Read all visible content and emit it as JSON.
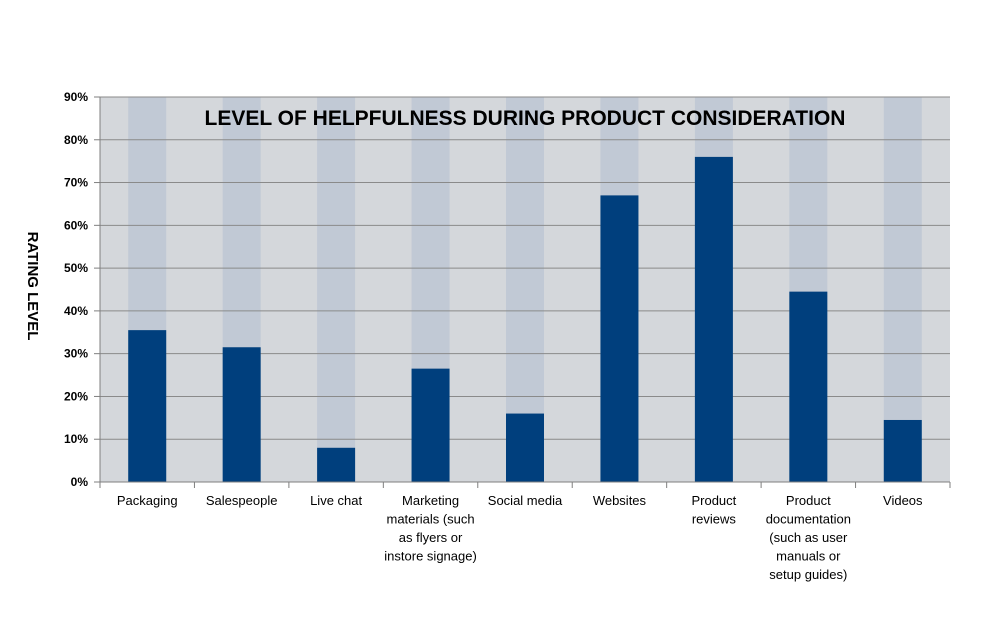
{
  "chart_data": {
    "type": "bar",
    "title": "LEVEL OF HELPFULNESS DURING PRODUCT CONSIDERATION",
    "xlabel": "",
    "ylabel": "RATING LEVEL",
    "ylim": [
      0,
      90
    ],
    "ytick_step": 10,
    "ytick_suffix": "%",
    "categories": [
      [
        "Packaging"
      ],
      [
        "Salespeople"
      ],
      [
        "Live chat"
      ],
      [
        "Marketing",
        "materials (such",
        "as flyers or",
        "instore signage)"
      ],
      [
        "Social media"
      ],
      [
        "Websites"
      ],
      [
        "Product",
        "reviews"
      ],
      [
        "Product",
        "documentation",
        "(such as user",
        "manuals or",
        "setup guides)"
      ],
      [
        "Videos"
      ]
    ],
    "values": [
      35.5,
      31.5,
      8,
      26.5,
      16,
      67,
      76,
      44.5,
      14.5
    ],
    "grid": true,
    "legend": "none",
    "colors": {
      "bar": "#003F7D",
      "plot_bg": "#D4D7DB",
      "band": "#C1C9D5",
      "grid": "#8A8A8A",
      "axis": "#7F7F7F"
    }
  }
}
